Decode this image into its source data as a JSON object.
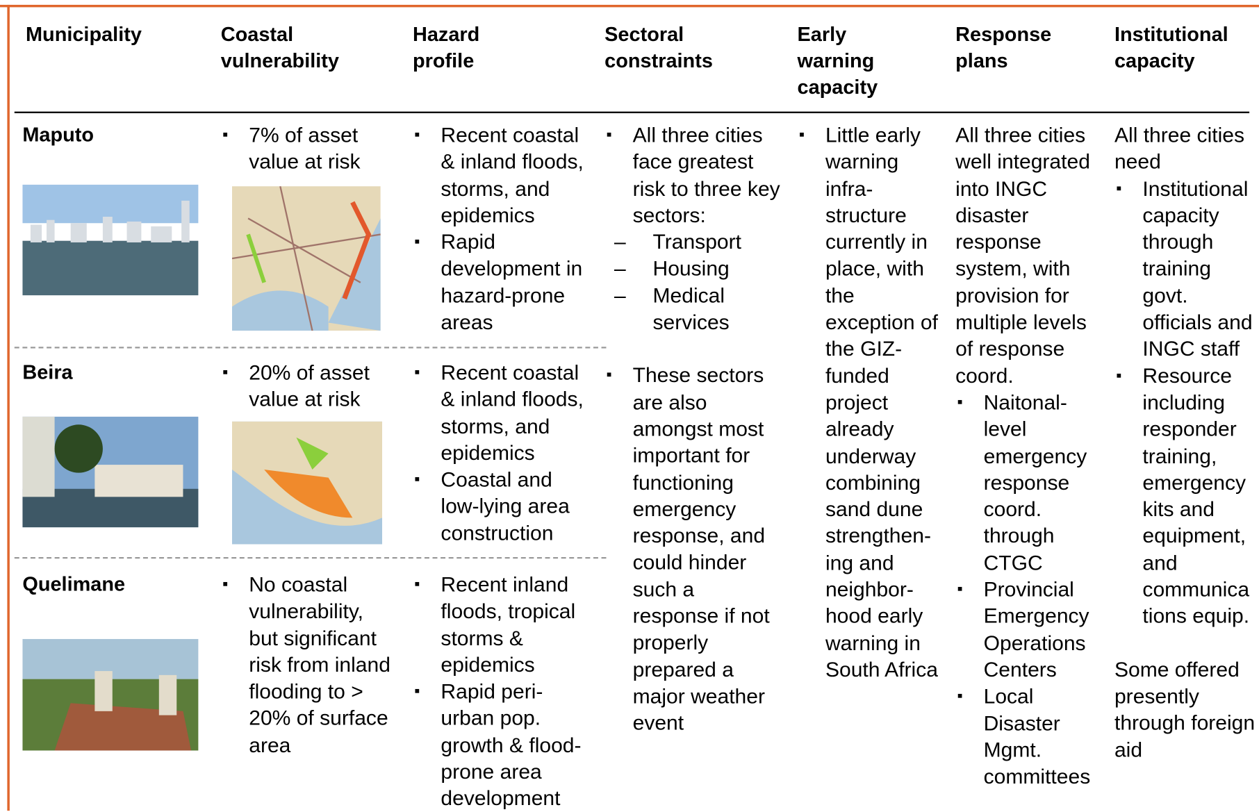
{
  "table": {
    "columns": [
      "Municipality",
      "Coastal vulnerability",
      "Hazard profile",
      "Sectoral constraints",
      "Early warning capacity",
      "Response plans",
      "Institutional capacity"
    ],
    "rows": [
      {
        "municipality": "Maputo",
        "coastal_vulnerability": [
          "7% of asset value at risk"
        ],
        "hazard_profile": [
          "Recent coastal & inland floods, storms, and epidemics",
          "Rapid development in hazard-prone areas"
        ]
      },
      {
        "municipality": "Beira",
        "coastal_vulnerability": [
          "20% of asset value at risk"
        ],
        "hazard_profile": [
          "Recent coastal & inland floods, storms, and epidemics",
          "Coastal and low-lying area construction"
        ]
      },
      {
        "municipality": "Quelimane",
        "coastal_vulnerability": [
          "No coastal vulnerability, but significant risk from inland flooding to > 20% of surface area"
        ],
        "hazard_profile": [
          "Recent inland floods, tropical storms & epidemics",
          "Rapid peri-urban pop. growth & flood-prone area development"
        ]
      }
    ],
    "sectoral_constraints": [
      {
        "text": "All three cities face greatest risk to three key sectors:",
        "sub": [
          "Transport",
          "Housing",
          "Medical services"
        ]
      },
      {
        "text": "These sectors are also amongst most important for functioning emergency response, and could hinder such a response if not properly prepared a major weather event"
      }
    ],
    "early_warning_capacity": [
      "Little early warning infra-structure currently in place, with the exception of the GIZ-funded project already underway combining sand dune strengthen-ing and neighbor-hood early warning in South Africa"
    ],
    "response_plans": {
      "intro": "All three cities well integrated into INGC disaster response system, with provision for multiple levels of response coord.",
      "bullets": [
        "Naitonal-level emergency response coord. through CTGC",
        "Provincial Emergency Operations Centers",
        "Local Disaster Mgmt. committees"
      ]
    },
    "institutional_capacity": {
      "intro": "All three cities need",
      "bullets": [
        "Institutional capacity through training govt. officials and INGC staff",
        "Resource including responder training, emergency kits and equipment, and communica tions equip."
      ],
      "note": "Some offered presently through foreign aid"
    }
  }
}
